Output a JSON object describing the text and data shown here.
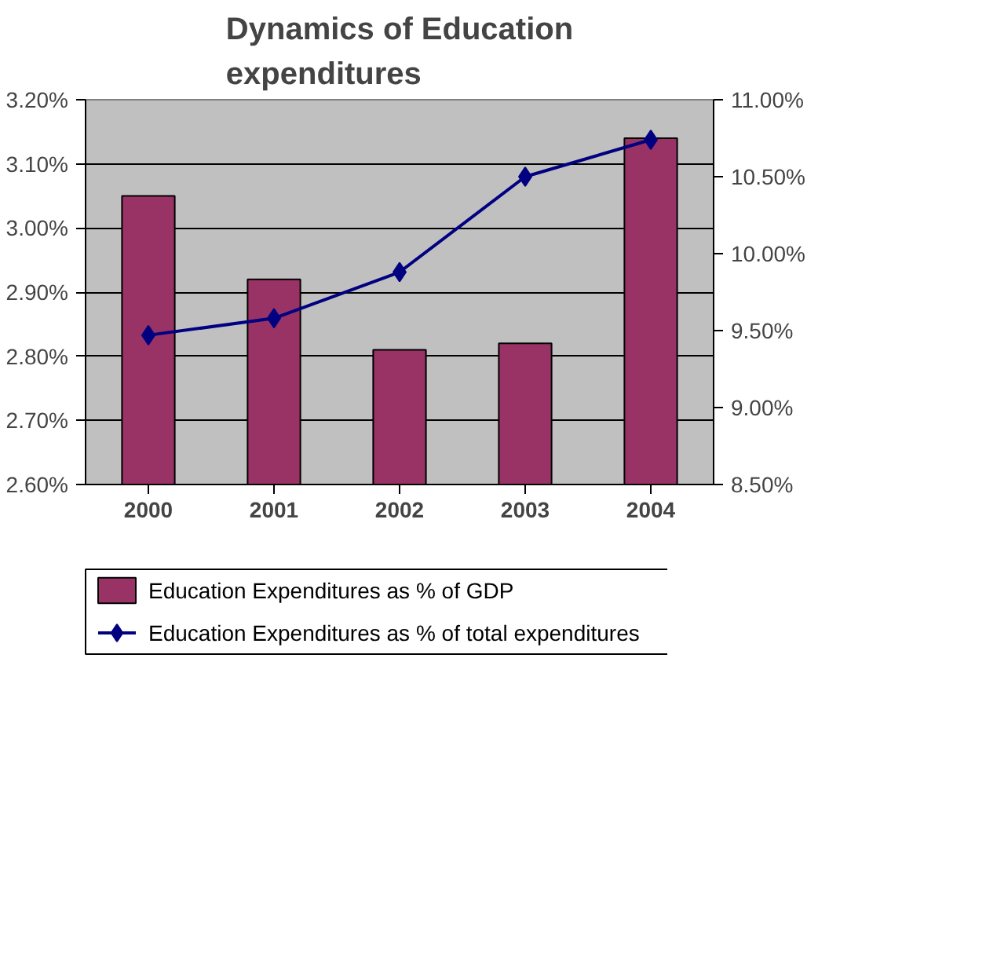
{
  "chart_data": {
    "type": "bar",
    "title": "Dynamics of Education expenditures",
    "categories": [
      "2000",
      "2001",
      "2002",
      "2003",
      "2004"
    ],
    "series": [
      {
        "name": "Education Expenditures as % of GDP",
        "color": "#993366",
        "values": [
          3.05,
          2.92,
          2.81,
          2.82,
          3.14
        ]
      },
      {
        "name": "Education Expenditures as % of total expenditures",
        "type": "line",
        "axis": "y2",
        "color": "#000080",
        "marker": "diamond",
        "values": [
          9.47,
          9.58,
          9.88,
          10.5,
          10.74
        ]
      }
    ],
    "ylim": [
      2.6,
      3.2
    ],
    "yticks": [
      {
        "value": 2.6,
        "label": "2.60%"
      },
      {
        "value": 2.7,
        "label": "2.70%"
      },
      {
        "value": 2.8,
        "label": "2.80%"
      },
      {
        "value": 2.9,
        "label": "2.90%"
      },
      {
        "value": 3.0,
        "label": "3.00%"
      },
      {
        "value": 3.1,
        "label": "3.10%"
      },
      {
        "value": 3.2,
        "label": "3.20%"
      }
    ],
    "y2lim": [
      8.5,
      11.0
    ],
    "y2ticks": [
      {
        "value": 8.5,
        "label": "8.50%"
      },
      {
        "value": 9.0,
        "label": "9.00%"
      },
      {
        "value": 9.5,
        "label": "9.50%"
      },
      {
        "value": 10.0,
        "label": "10.00%"
      },
      {
        "value": 10.5,
        "label": "10.50%"
      },
      {
        "value": 11.0,
        "label": "11.00%"
      }
    ],
    "grid": "y",
    "legend": "bottom"
  }
}
